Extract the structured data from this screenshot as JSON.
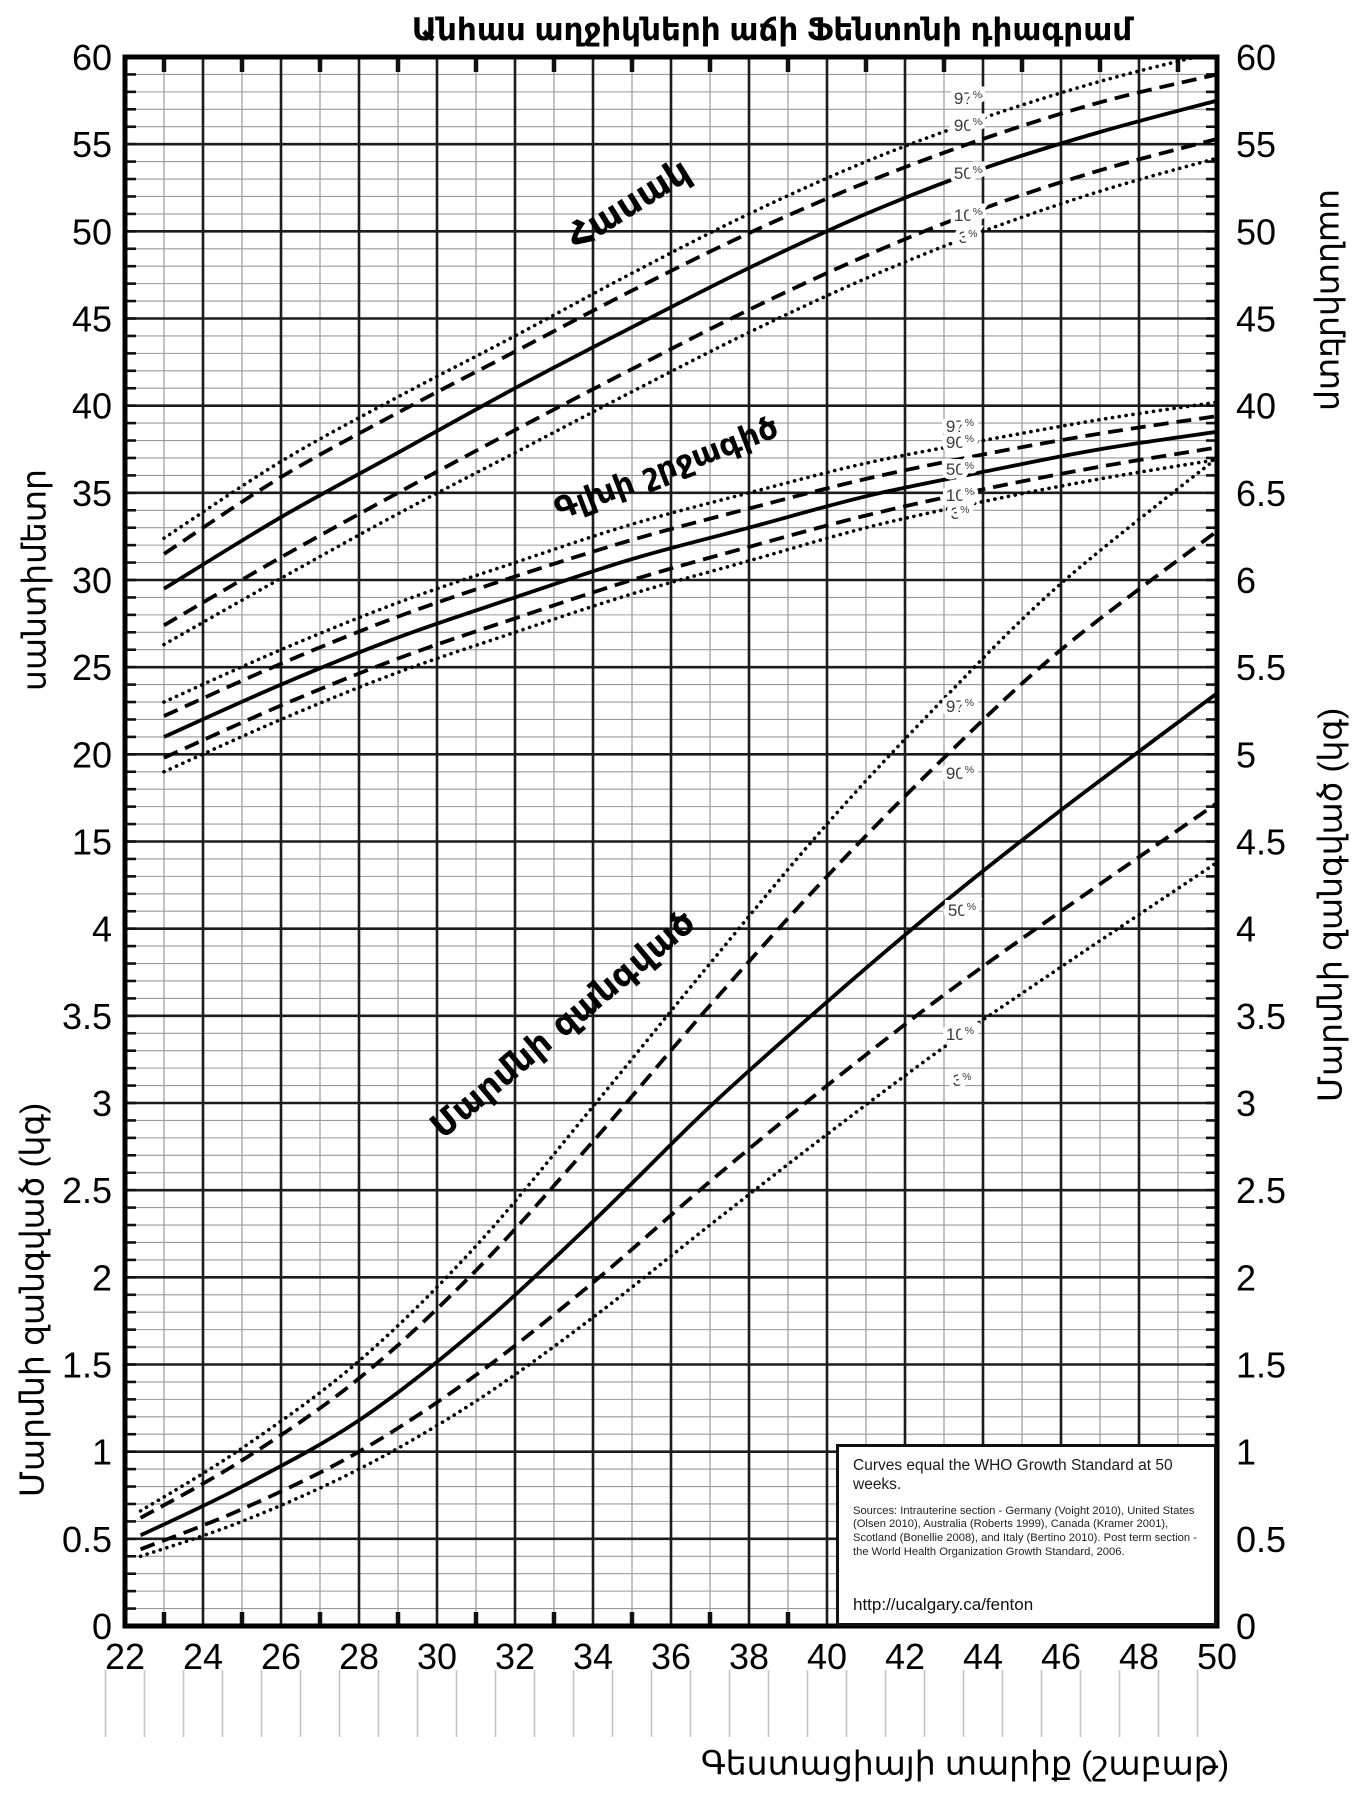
{
  "title": "Անհաս աղջիկների աճի Ֆենտոնի դիագրամ",
  "chart_data": {
    "type": "line",
    "title": "Անհաս աղջիկների աճի Ֆենտոնի դիագրամ",
    "xlabel": "Գեստացիայի տարիք (շաբաթ)",
    "x_range": [
      22,
      50
    ],
    "x_ticks": [
      "22",
      "24",
      "26",
      "28",
      "30",
      "32",
      "34",
      "36",
      "38",
      "40",
      "42",
      "44",
      "46",
      "48",
      "50"
    ],
    "grid": "major every 2 weeks / 5 cm / 0.5 kg; minor every 1 week / 1 cm / 0.1 kg",
    "axes": {
      "left_tick_labels": [
        "60",
        "55",
        "50",
        "45",
        "40",
        "35",
        "30",
        "25",
        "20",
        "15",
        "4",
        "3.5",
        "3",
        "2.5",
        "2",
        "1.5",
        "1",
        "0.5",
        "0"
      ],
      "right_tick_labels": [
        "60",
        "55",
        "50",
        "45",
        "40",
        "6.5",
        "6",
        "5.5",
        "5",
        "4.5",
        "4",
        "3.5",
        "3",
        "2.5",
        "2",
        "1.5",
        "1",
        "0.5",
        "0"
      ],
      "left_cm_axis_label": "սանտիմետր",
      "left_kg_axis_label": "Մարմնի զանգված (կգ)",
      "right_cm_axis_label": "սանտիմետր",
      "right_kg_axis_label": "Մարմնի զանգված (կգ)",
      "cm_axis_range": [
        15,
        60
      ],
      "kg_axis_range": [
        0,
        9
      ]
    },
    "percentile_labels": [
      "97%",
      "90%",
      "50%",
      "10%",
      "3%"
    ],
    "line_styles": {
      "97%": "dotted",
      "90%": "dashed",
      "50%": "solid",
      "10%": "dashed",
      "3%": "dotted"
    },
    "series_groups": [
      {
        "name": "Հասակ",
        "unit": "cm",
        "weeks": [
          23,
          26,
          29,
          32,
          35,
          38,
          41,
          44,
          47,
          50
        ],
        "percentiles": {
          "97%": [
            32.4,
            36.8,
            40.5,
            44.0,
            47.6,
            51.0,
            54.0,
            56.5,
            58.6,
            60.3
          ],
          "90%": [
            31.5,
            35.9,
            39.6,
            43.1,
            46.6,
            49.9,
            52.8,
            55.3,
            57.4,
            59.0
          ],
          "50%": [
            29.5,
            33.6,
            37.3,
            41.0,
            44.5,
            47.9,
            51.0,
            53.6,
            55.7,
            57.5
          ],
          "10%": [
            27.4,
            31.3,
            35.0,
            38.6,
            42.1,
            45.5,
            48.6,
            51.3,
            53.5,
            55.3
          ],
          "3%": [
            26.3,
            30.1,
            33.8,
            37.3,
            40.8,
            44.2,
            47.3,
            50.0,
            52.3,
            54.2
          ]
        }
      },
      {
        "name": "Գլխի շրջագիծ",
        "unit": "cm",
        "weeks": [
          23,
          26,
          29,
          32,
          35,
          38,
          41,
          44,
          47,
          50
        ],
        "percentiles": {
          "97%": [
            23.0,
            26.0,
            28.7,
            31.0,
            33.2,
            35.0,
            36.7,
            38.0,
            39.2,
            40.2
          ],
          "90%": [
            22.2,
            25.2,
            27.9,
            30.2,
            32.3,
            34.1,
            35.8,
            37.2,
            38.4,
            39.4
          ],
          "50%": [
            21.0,
            24.0,
            26.7,
            29.0,
            31.2,
            33.0,
            34.8,
            36.2,
            37.5,
            38.5
          ],
          "10%": [
            19.8,
            22.8,
            25.5,
            27.8,
            30.0,
            31.9,
            33.7,
            35.2,
            36.5,
            37.6
          ],
          "3%": [
            19.0,
            22.0,
            24.7,
            27.0,
            29.2,
            31.1,
            33.0,
            34.5,
            35.8,
            36.9
          ]
        }
      },
      {
        "name": "Մարմնի զանգված",
        "unit": "kg",
        "weeks": [
          22.4,
          25,
          28,
          31,
          34,
          37,
          40,
          43,
          46,
          50
        ],
        "percentiles": {
          "97%": [
            0.66,
            1.02,
            1.52,
            2.18,
            2.98,
            3.8,
            4.6,
            5.32,
            5.98,
            6.7
          ],
          "90%": [
            0.62,
            0.95,
            1.42,
            2.04,
            2.78,
            3.56,
            4.3,
            4.98,
            5.6,
            6.28
          ],
          "50%": [
            0.52,
            0.8,
            1.18,
            1.7,
            2.32,
            2.98,
            3.58,
            4.15,
            4.68,
            5.35
          ],
          "10%": [
            0.44,
            0.67,
            1.0,
            1.44,
            1.97,
            2.55,
            3.1,
            3.62,
            4.1,
            4.72
          ],
          "3%": [
            0.4,
            0.6,
            0.9,
            1.29,
            1.77,
            2.3,
            2.82,
            3.32,
            3.78,
            4.38
          ]
        }
      }
    ]
  },
  "annotation_box": {
    "line1": "Curves equal the WHO Growth Standard at 50 weeks.",
    "sources": "Sources: Intrauterine section - Germany (Voight 2010), United States (Olsen 2010), Australia (Roberts 1999), Canada (Kramer 2001), Scotland (Bonellie 2008), and Italy (Bertino 2010). Post term section - the World Health Organization Growth Standard, 2006.",
    "url": "http://ucalgary.ca/fenton"
  },
  "colors": {
    "curve": "#000000",
    "major_grid": "#1c1c1c",
    "minor_grid": "#9a9a9a",
    "hanging_ticks": "#c4c4c4",
    "percentile_label": "#3a3a3a",
    "text": "#000000"
  }
}
